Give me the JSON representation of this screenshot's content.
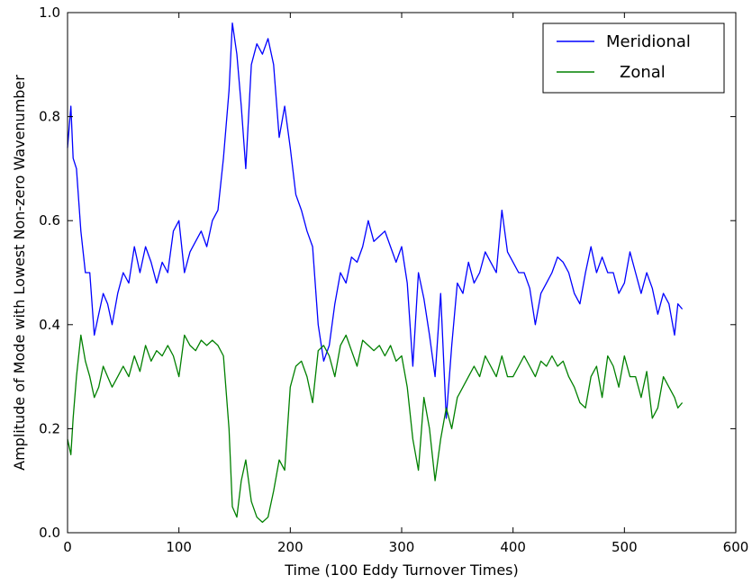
{
  "chart_data": {
    "type": "line",
    "title": "",
    "xlabel": "Time (100 Eddy Turnover Times)",
    "ylabel": "Amplitude of Mode with Lowest Non-zero Wavenumber",
    "xlim": [
      0,
      600
    ],
    "ylim": [
      0.0,
      1.0
    ],
    "xticks": [
      "0",
      "100",
      "200",
      "300",
      "400",
      "500",
      "600"
    ],
    "yticks": [
      "0.0",
      "0.2",
      "0.4",
      "0.6",
      "0.8",
      "1.0"
    ],
    "grid": false,
    "legend_position": "top-right",
    "series": [
      {
        "name": "Meridional",
        "color": "#0000ff",
        "x": [
          0,
          3,
          5,
          8,
          12,
          16,
          20,
          24,
          28,
          32,
          36,
          40,
          45,
          50,
          55,
          60,
          65,
          70,
          75,
          80,
          85,
          90,
          95,
          100,
          105,
          110,
          115,
          120,
          125,
          130,
          135,
          140,
          145,
          148,
          152,
          156,
          160,
          165,
          170,
          175,
          180,
          185,
          190,
          195,
          200,
          205,
          210,
          215,
          220,
          225,
          230,
          235,
          240,
          245,
          250,
          255,
          260,
          265,
          270,
          275,
          280,
          285,
          290,
          295,
          300,
          305,
          310,
          315,
          320,
          325,
          330,
          335,
          340,
          345,
          350,
          355,
          360,
          365,
          370,
          375,
          380,
          385,
          390,
          395,
          400,
          405,
          410,
          415,
          420,
          425,
          430,
          435,
          440,
          445,
          450,
          455,
          460,
          465,
          470,
          475,
          480,
          485,
          490,
          495,
          500,
          505,
          510,
          515,
          520,
          525,
          530,
          535,
          540,
          545,
          548,
          552
        ],
        "values": [
          0.74,
          0.82,
          0.72,
          0.7,
          0.58,
          0.5,
          0.5,
          0.38,
          0.42,
          0.46,
          0.44,
          0.4,
          0.46,
          0.5,
          0.48,
          0.55,
          0.5,
          0.55,
          0.52,
          0.48,
          0.52,
          0.5,
          0.58,
          0.6,
          0.5,
          0.54,
          0.56,
          0.58,
          0.55,
          0.6,
          0.62,
          0.72,
          0.85,
          0.98,
          0.92,
          0.82,
          0.7,
          0.9,
          0.94,
          0.92,
          0.95,
          0.9,
          0.76,
          0.82,
          0.74,
          0.65,
          0.62,
          0.58,
          0.55,
          0.4,
          0.33,
          0.36,
          0.44,
          0.5,
          0.48,
          0.53,
          0.52,
          0.55,
          0.6,
          0.56,
          0.57,
          0.58,
          0.55,
          0.52,
          0.55,
          0.48,
          0.32,
          0.5,
          0.45,
          0.38,
          0.3,
          0.46,
          0.22,
          0.36,
          0.48,
          0.46,
          0.52,
          0.48,
          0.5,
          0.54,
          0.52,
          0.5,
          0.62,
          0.54,
          0.52,
          0.5,
          0.5,
          0.47,
          0.4,
          0.46,
          0.48,
          0.5,
          0.53,
          0.52,
          0.5,
          0.46,
          0.44,
          0.5,
          0.55,
          0.5,
          0.53,
          0.5,
          0.5,
          0.46,
          0.48,
          0.54,
          0.5,
          0.46,
          0.5,
          0.47,
          0.42,
          0.46,
          0.44,
          0.38,
          0.44,
          0.43
        ]
      },
      {
        "name": "Zonal",
        "color": "#008000",
        "x": [
          0,
          3,
          5,
          8,
          12,
          16,
          20,
          24,
          28,
          32,
          36,
          40,
          45,
          50,
          55,
          60,
          65,
          70,
          75,
          80,
          85,
          90,
          95,
          100,
          105,
          110,
          115,
          120,
          125,
          130,
          135,
          140,
          145,
          148,
          152,
          156,
          160,
          165,
          170,
          175,
          180,
          185,
          190,
          195,
          200,
          205,
          210,
          215,
          220,
          225,
          230,
          235,
          240,
          245,
          250,
          255,
          260,
          265,
          270,
          275,
          280,
          285,
          290,
          295,
          300,
          305,
          310,
          315,
          320,
          325,
          330,
          335,
          340,
          345,
          350,
          355,
          360,
          365,
          370,
          375,
          380,
          385,
          390,
          395,
          400,
          405,
          410,
          415,
          420,
          425,
          430,
          435,
          440,
          445,
          450,
          455,
          460,
          465,
          470,
          475,
          480,
          485,
          490,
          495,
          500,
          505,
          510,
          515,
          520,
          525,
          530,
          535,
          540,
          545,
          548,
          552
        ],
        "values": [
          0.18,
          0.15,
          0.22,
          0.3,
          0.38,
          0.33,
          0.3,
          0.26,
          0.28,
          0.32,
          0.3,
          0.28,
          0.3,
          0.32,
          0.3,
          0.34,
          0.31,
          0.36,
          0.33,
          0.35,
          0.34,
          0.36,
          0.34,
          0.3,
          0.38,
          0.36,
          0.35,
          0.37,
          0.36,
          0.37,
          0.36,
          0.34,
          0.2,
          0.05,
          0.03,
          0.1,
          0.14,
          0.06,
          0.03,
          0.02,
          0.03,
          0.08,
          0.14,
          0.12,
          0.28,
          0.32,
          0.33,
          0.3,
          0.25,
          0.35,
          0.36,
          0.34,
          0.3,
          0.36,
          0.38,
          0.35,
          0.32,
          0.37,
          0.36,
          0.35,
          0.36,
          0.34,
          0.36,
          0.33,
          0.34,
          0.28,
          0.18,
          0.12,
          0.26,
          0.2,
          0.1,
          0.18,
          0.24,
          0.2,
          0.26,
          0.28,
          0.3,
          0.32,
          0.3,
          0.34,
          0.32,
          0.3,
          0.34,
          0.3,
          0.3,
          0.32,
          0.34,
          0.32,
          0.3,
          0.33,
          0.32,
          0.34,
          0.32,
          0.33,
          0.3,
          0.28,
          0.25,
          0.24,
          0.3,
          0.32,
          0.26,
          0.34,
          0.32,
          0.28,
          0.34,
          0.3,
          0.3,
          0.26,
          0.31,
          0.22,
          0.24,
          0.3,
          0.28,
          0.26,
          0.24,
          0.25
        ]
      }
    ]
  }
}
